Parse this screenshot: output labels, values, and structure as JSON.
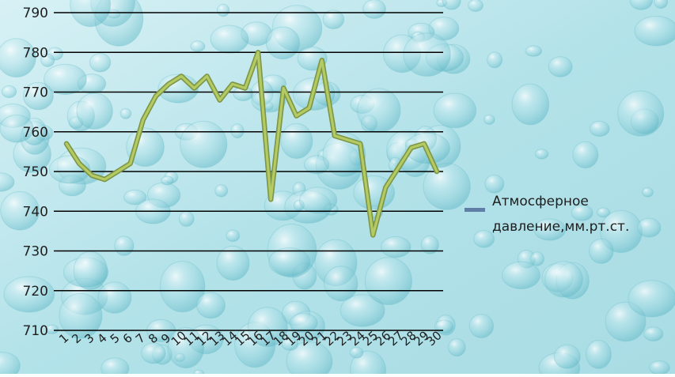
{
  "chart_data": {
    "type": "line",
    "title": "",
    "xlabel": "",
    "ylabel": "",
    "ylim": [
      710,
      790
    ],
    "yticks": [
      710,
      720,
      730,
      740,
      750,
      760,
      770,
      780,
      790
    ],
    "grid": true,
    "legend_position": "right",
    "categories": [
      "1",
      "2",
      "3",
      "4",
      "5",
      "6",
      "7",
      "8",
      "9",
      "10",
      "11",
      "12",
      "13",
      "14",
      "15",
      "16",
      "17",
      "18",
      "19",
      "20",
      "21",
      "22",
      "23",
      "24",
      "25",
      "26",
      "27",
      "28",
      "29",
      "30"
    ],
    "series": [
      {
        "name": "Атмосферное давление,мм.рт.ст.",
        "values": [
          757,
          752,
          749,
          748,
          750,
          752,
          763,
          769,
          772,
          774,
          771,
          774,
          768,
          772,
          771,
          780,
          743,
          771,
          764,
          766,
          778,
          759,
          758,
          757,
          734,
          746,
          751,
          756,
          757,
          750
        ]
      }
    ]
  },
  "colors": {
    "line_outer": "#7E9645",
    "line_inner": "#B4CB64",
    "legend_swatch": "#5F7FA8",
    "grid": "#000000",
    "background_light": "#D7F1F5",
    "background_dark": "#8CCFD8"
  }
}
